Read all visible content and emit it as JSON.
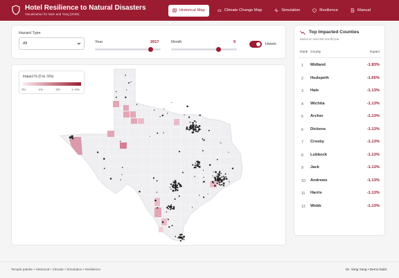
{
  "header": {
    "title": "Hotel Resilience to Natural Disasters",
    "subtitle": "Visualization for Nam and Yang (2026)",
    "nav": [
      {
        "label": "Historical Map",
        "icon": "map-icon",
        "active": true
      },
      {
        "label": "Climate Change Map",
        "icon": "cloud-icon",
        "active": false
      },
      {
        "label": "Simulation",
        "icon": "pulse-icon",
        "active": false
      },
      {
        "label": "Resilience",
        "icon": "shield-heart-icon",
        "active": false
      },
      {
        "label": "Manual",
        "icon": "document-icon",
        "active": false
      }
    ]
  },
  "controls": {
    "hazard_label": "Hazard Type",
    "hazard_value": "All",
    "year_label": "Year",
    "year_value": "2017",
    "year_fraction": 0.85,
    "month_label": "Month",
    "month_value": "9",
    "month_fraction": 0.72,
    "hotels_label": "Hotels",
    "hotels_on": true
  },
  "map": {
    "legend_title": "Impact % (0 to -5%)",
    "legend_ticks": [
      "0%",
      "-1%",
      "-3%",
      "≤ -5%"
    ],
    "accent": "#9b1b30"
  },
  "side": {
    "title": "Top Impacted Counties",
    "subtitle": "Based on selected month/year",
    "col_rank": "Rank",
    "col_county": "County",
    "col_impact": "Impact",
    "rows": [
      {
        "rank": "1",
        "county": "Midland",
        "impact": "-1.83%"
      },
      {
        "rank": "2",
        "county": "Hudspeth",
        "impact": "-1.65%"
      },
      {
        "rank": "3",
        "county": "Hale",
        "impact": "-1.13%"
      },
      {
        "rank": "4",
        "county": "Wichita",
        "impact": "-1.13%"
      },
      {
        "rank": "5",
        "county": "Archer",
        "impact": "-1.13%"
      },
      {
        "rank": "6",
        "county": "Dickens",
        "impact": "-1.13%"
      },
      {
        "rank": "7",
        "county": "Crosby",
        "impact": "-1.13%"
      },
      {
        "rank": "8",
        "county": "Lubbock",
        "impact": "-1.13%"
      },
      {
        "rank": "9",
        "county": "Jack",
        "impact": "-1.13%"
      },
      {
        "rank": "10",
        "county": "Andrews",
        "impact": "-1.13%"
      },
      {
        "rank": "11",
        "county": "Harris",
        "impact": "-1.13%"
      },
      {
        "rank": "12",
        "county": "Webb",
        "impact": "-1.13%"
      }
    ]
  },
  "footer": {
    "left": "Temple palette • Historical • Climate • Simulation • Resilience",
    "right": "Dr. Yang Yang • Demo build"
  }
}
